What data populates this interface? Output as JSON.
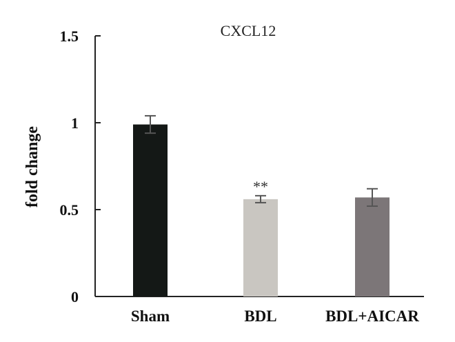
{
  "chart_data": {
    "type": "bar",
    "title": "CXCL12",
    "xlabel": "",
    "ylabel": "fold change",
    "ylim": [
      0,
      1.5
    ],
    "yticks": [
      0,
      0.5,
      1,
      1.5
    ],
    "ytick_labels": [
      "0",
      "0.5",
      "1",
      "1.5"
    ],
    "categories": [
      "Sham",
      "BDL",
      "BDL+AICAR"
    ],
    "values": [
      0.99,
      0.56,
      0.57
    ],
    "errors": [
      0.05,
      0.02,
      0.05
    ],
    "colors": [
      "#141816",
      "#c9c6c1",
      "#7c7678"
    ],
    "annotations": [
      "",
      "**",
      ""
    ],
    "grid": false,
    "legend": "none"
  }
}
